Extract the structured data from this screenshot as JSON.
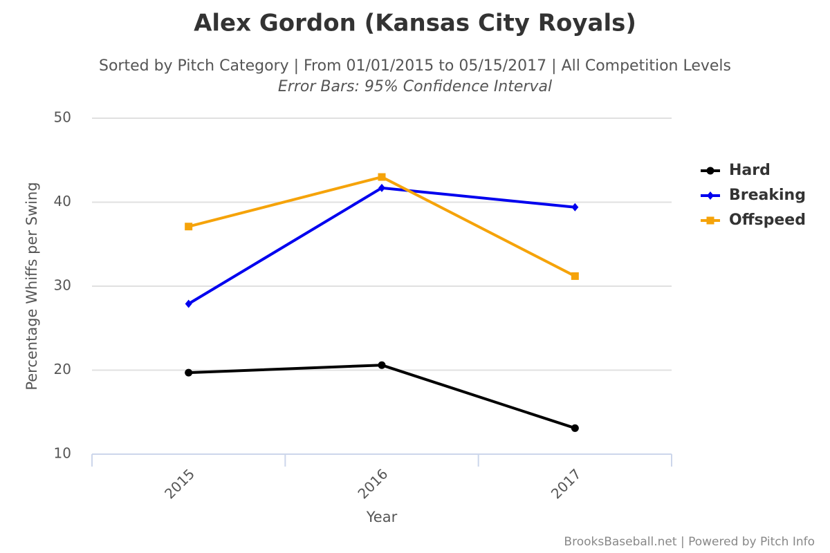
{
  "chart_data": {
    "type": "line",
    "title": "Alex Gordon (Kansas City Royals)",
    "subtitle": "Sorted by Pitch Category | From 01/01/2015 to 05/15/2017 | All Competition Levels",
    "note": "Error Bars: 95% Confidence Interval",
    "x_label": "Year",
    "y_label": "Percentage Whiffs per Swing",
    "credits": "BrooksBaseball.net | Powered by Pitch Info",
    "categories": [
      "2015",
      "2016",
      "2017"
    ],
    "series": [
      {
        "name": "Hard",
        "color": "#000000",
        "marker": "circle",
        "values": [
          19.7,
          20.6,
          13.1
        ]
      },
      {
        "name": "Breaking",
        "color": "#0000ee",
        "marker": "diamond",
        "values": [
          27.9,
          41.7,
          39.4
        ]
      },
      {
        "name": "Offspeed",
        "color": "#f5a30a",
        "marker": "square",
        "values": [
          37.1,
          43.0,
          31.2
        ]
      }
    ],
    "ylim": [
      10,
      50
    ],
    "yticks": [
      10,
      20,
      30,
      40,
      50
    ],
    "grid": true,
    "legend": "right"
  }
}
